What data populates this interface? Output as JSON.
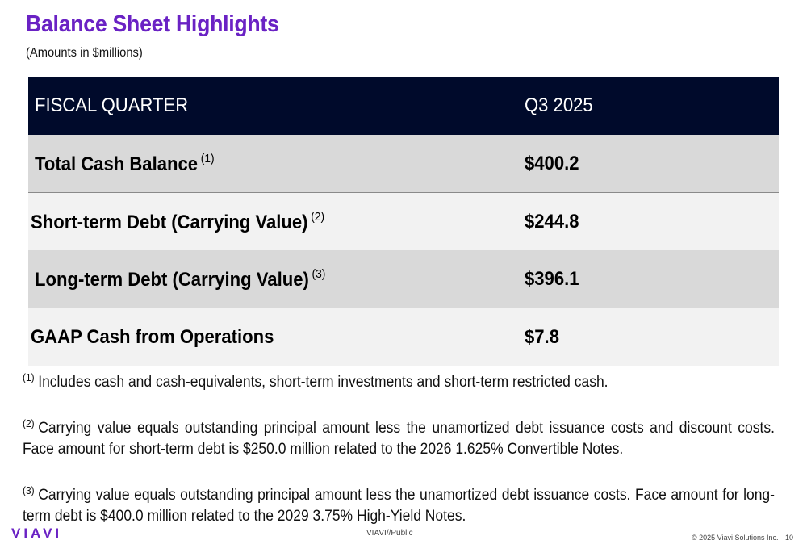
{
  "slide": {
    "title": "Balance Sheet Highlights",
    "subtitle": "(Amounts in $millions)"
  },
  "table": {
    "header": {
      "label": "FISCAL QUARTER",
      "value": "Q3 2025"
    },
    "rows": [
      {
        "label": "Total Cash Balance",
        "footnote": "(1)",
        "value": "$400.2"
      },
      {
        "label": "Short-term Debt (Carrying Value)",
        "footnote": "(2)",
        "value": "$244.8"
      },
      {
        "label": "Long-term Debt (Carrying Value)",
        "footnote": "(3)",
        "value": "$396.1"
      },
      {
        "label": "GAAP Cash from Operations",
        "footnote": "",
        "value": "$7.8"
      }
    ]
  },
  "footnotes": [
    {
      "marker": "(1)",
      "text": "Includes cash and cash-equivalents, short-term investments and short-term restricted cash."
    },
    {
      "marker": "(2)",
      "text": "Carrying value equals outstanding principal amount less the unamortized debt issuance costs and discount costs. Face amount for short-term debt is $250.0 million related to the 2026 1.625% Convertible Notes."
    },
    {
      "marker": "(3)",
      "text": "Carrying value equals outstanding principal amount less the unamortized debt issuance costs. Face amount for long-term debt is $400.0 million related to the 2029 3.75% High-Yield Notes."
    }
  ],
  "footer": {
    "logo": "VIAVI",
    "classification": "VIAVI//Public",
    "copyright": "© 2025 Viavi Solutions Inc.",
    "page_number": "10"
  },
  "colors": {
    "brand_purple": "#6a22c4",
    "header_navy": "#000a2b",
    "row_shade": "#d9d9d9",
    "row_light": "#f2f2f2"
  }
}
